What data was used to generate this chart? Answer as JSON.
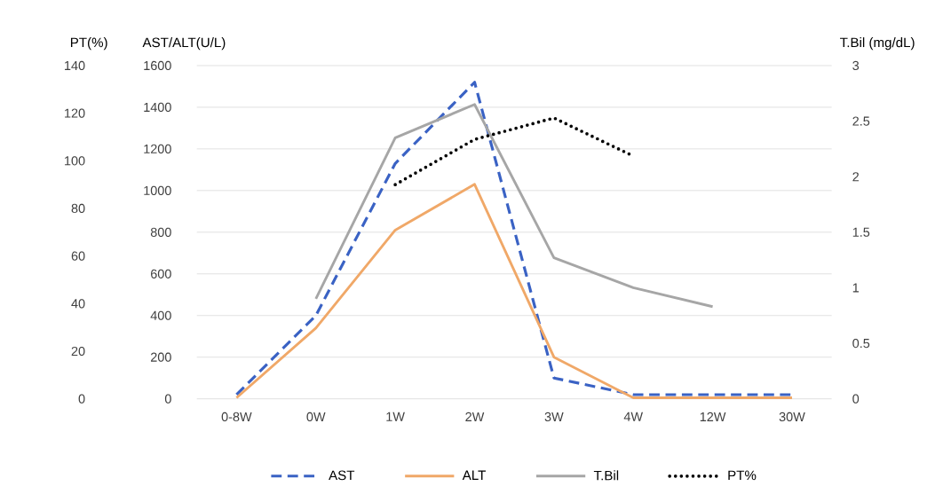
{
  "chart_data": {
    "type": "line",
    "ylabel": "AST/ALT(U/L)",
    "y2label": "T.Bil (mg/dL)",
    "y3label": "PT(%)",
    "categories": [
      "0-8W",
      "0W",
      "1W",
      "2W",
      "3W",
      "4W",
      "12W",
      "30W"
    ],
    "series": [
      {
        "name": "AST",
        "color": "#3a62c4",
        "line_style": "dashed",
        "axis": "y",
        "values": [
          20,
          400,
          1130,
          1520,
          100,
          20,
          20,
          20
        ]
      },
      {
        "name": "ALT",
        "color": "#f0a868",
        "line_style": "solid",
        "axis": "y",
        "values": [
          5,
          340,
          810,
          1030,
          200,
          5,
          5,
          5
        ]
      },
      {
        "name": "T.Bil",
        "color": "#a6a6a6",
        "line_style": "solid",
        "axis": "y2",
        "values": [
          null,
          0.9,
          2.35,
          2.65,
          1.27,
          1.0,
          0.83,
          null
        ]
      },
      {
        "name": "PT%",
        "color": "#000000",
        "line_style": "dotted",
        "axis": "y3",
        "values": [
          null,
          null,
          90,
          109,
          118,
          102,
          null,
          null
        ]
      }
    ],
    "ylim": [
      0,
      1600
    ],
    "yticks": [
      0,
      200,
      400,
      600,
      800,
      1000,
      1200,
      1400,
      1600
    ],
    "y2lim": [
      0,
      3
    ],
    "y2ticks": [
      0,
      0.5,
      1,
      1.5,
      2,
      2.5,
      3
    ],
    "y3lim": [
      0,
      140
    ],
    "y3ticks": [
      0,
      20,
      40,
      60,
      80,
      100,
      120,
      140
    ],
    "grid": "y",
    "legend": "bottom"
  }
}
